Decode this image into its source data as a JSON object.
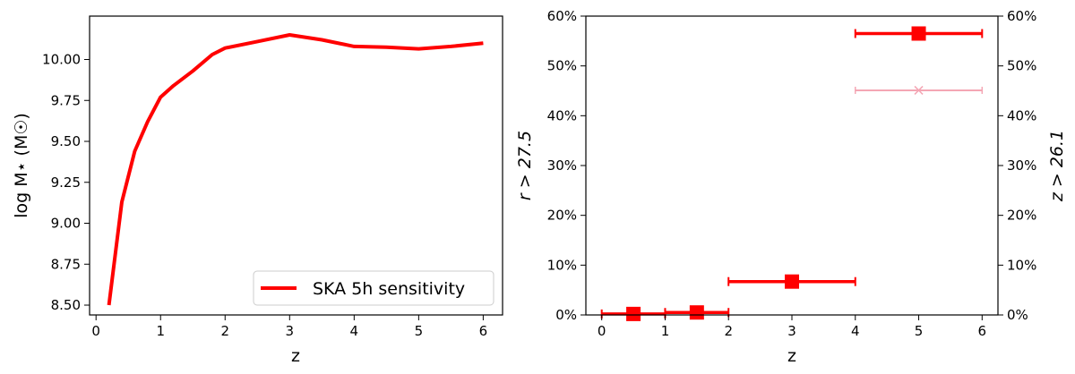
{
  "chart_data": [
    {
      "type": "line",
      "xlabel": "z",
      "ylabel": "log M⋆ (M☉)",
      "xlim": [
        -0.1,
        6.3
      ],
      "ylim": [
        8.44,
        10.265
      ],
      "xticks": [
        "0",
        "1",
        "2",
        "3",
        "4",
        "5",
        "6"
      ],
      "yticks": [
        "8.50",
        "8.75",
        "9.00",
        "9.25",
        "9.50",
        "9.75",
        "10.00"
      ],
      "color": "#ff0000",
      "legend_position": "lower-right",
      "series": [
        {
          "name": "SKA 5h sensitivity",
          "x": [
            0.2,
            0.4,
            0.6,
            0.8,
            1.0,
            1.2,
            1.5,
            1.8,
            2.0,
            2.5,
            3.0,
            3.5,
            4.0,
            4.5,
            5.0,
            5.5,
            6.0
          ],
          "y": [
            8.5,
            9.13,
            9.44,
            9.62,
            9.77,
            9.84,
            9.93,
            10.03,
            10.07,
            10.11,
            10.15,
            10.12,
            10.08,
            10.075,
            10.065,
            10.08,
            10.1
          ]
        }
      ]
    },
    {
      "type": "scatter",
      "xlabel": "z",
      "ylabel_left": "r > 27.5",
      "ylabel_right": "z > 26.1",
      "xlim": [
        -0.25,
        6.25
      ],
      "ylim": [
        0,
        60
      ],
      "xticks": [
        "0",
        "1",
        "2",
        "3",
        "4",
        "5",
        "6"
      ],
      "yticks": [
        "0%",
        "10%",
        "20%",
        "30%",
        "40%",
        "50%",
        "60%"
      ],
      "series": [
        {
          "axis": "left",
          "marker": "square",
          "color": "#ff0000",
          "points": [
            {
              "x": 0.5,
              "y": 0.2,
              "xerr": [
                0,
                1
              ]
            },
            {
              "x": 1.5,
              "y": 0.5,
              "xerr": [
                1,
                2
              ]
            },
            {
              "x": 3.0,
              "y": 6.7,
              "xerr": [
                2,
                4
              ]
            },
            {
              "x": 5.0,
              "y": 56.5,
              "xerr": [
                4,
                6
              ]
            }
          ]
        },
        {
          "axis": "right",
          "marker": "x",
          "color": "#f4a6b4",
          "points": [
            {
              "x": 5.0,
              "y": 45.1,
              "xerr": [
                4,
                6
              ]
            }
          ]
        }
      ]
    }
  ]
}
